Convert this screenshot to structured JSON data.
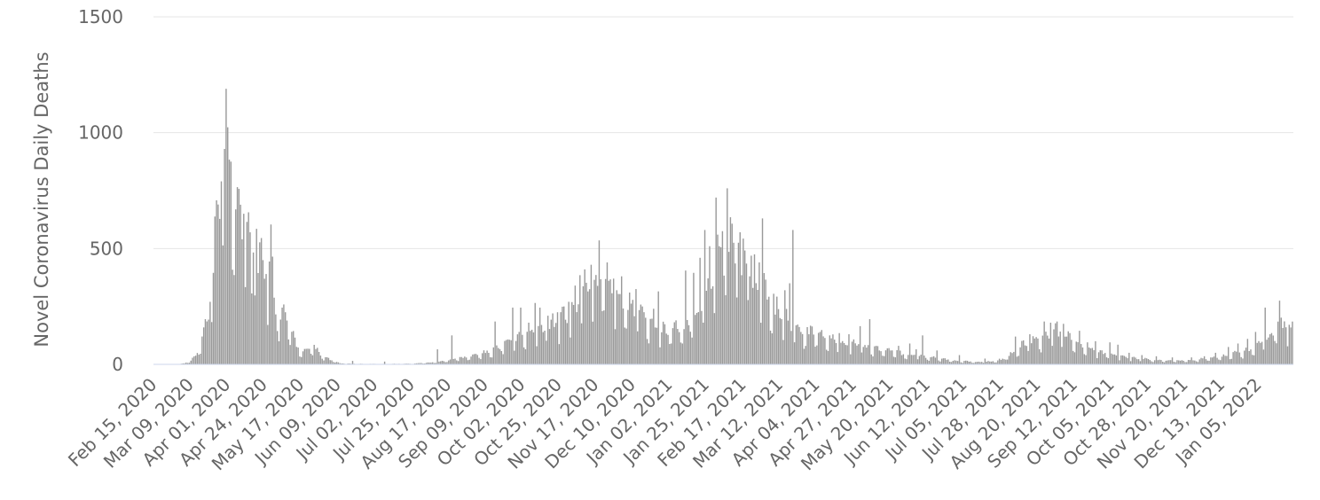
{
  "chart_data": {
    "type": "bar",
    "title": "",
    "ylabel": "Novel Coronavirus Daily Deaths",
    "xlabel": "",
    "ylim": [
      0,
      1500
    ],
    "y_ticks": [
      0,
      500,
      1000,
      1500
    ],
    "grid": true,
    "legend": "none",
    "bar_color": "#999999",
    "x_start": "Feb 15, 2020",
    "x_end": "Jan 26, 2022",
    "x_tick_labels": [
      "Feb 15, 2020",
      "Mar 09, 2020",
      "Apr 01, 2020",
      "Apr 24, 2020",
      "May 17, 2020",
      "Jun 09, 2020",
      "Jul 02, 2020",
      "Jul 25, 2020",
      "Aug 17, 2020",
      "Sep 09, 2020",
      "Oct 02, 2020",
      "Oct 25, 2020",
      "Nov 17, 2020",
      "Dec 10, 2020",
      "Jan 02, 2021",
      "Jan 25, 2021",
      "Feb 17, 2021",
      "Mar 12, 2021",
      "Apr 04, 2021",
      "Apr 27, 2021",
      "May 20, 2021",
      "Jun 12, 2021",
      "Jul 05, 2021",
      "Jul 28, 2021",
      "Aug 20, 2021",
      "Sep 12, 2021",
      "Oct 05, 2021",
      "Oct 28, 2021",
      "Nov 20, 2021",
      "Dec 13, 2021",
      "Jan 05, 2022"
    ],
    "anchors": [
      [
        "Feb 15, 2020",
        0
      ],
      [
        "Mar 01, 2020",
        0
      ],
      [
        "Mar 05, 2020",
        5
      ],
      [
        "Mar 09, 2020",
        15
      ],
      [
        "Mar 13, 2020",
        45
      ],
      [
        "Mar 16, 2020",
        100
      ],
      [
        "Mar 19, 2020",
        190
      ],
      [
        "Mar 22, 2020",
        290
      ],
      [
        "Mar 24, 2020",
        550
      ],
      [
        "Mar 25, 2020",
        700
      ],
      [
        "Mar 27, 2020",
        760
      ],
      [
        "Mar 29, 2020",
        860
      ],
      [
        "Mar 31, 2020",
        950
      ],
      [
        "Apr 01, 2020",
        995
      ],
      [
        "Apr 02, 2020",
        880
      ],
      [
        "Apr 04, 2020",
        770
      ],
      [
        "Apr 06, 2020",
        720
      ],
      [
        "Apr 08, 2020",
        700
      ],
      [
        "Apr 10, 2020",
        640
      ],
      [
        "Apr 12, 2020",
        560
      ],
      [
        "Apr 14, 2020",
        520
      ],
      [
        "Apr 16, 2020",
        350
      ],
      [
        "Apr 18, 2020",
        580
      ],
      [
        "Apr 20, 2020",
        430
      ],
      [
        "Apr 22, 2020",
        460
      ],
      [
        "Apr 24, 2020",
        370
      ],
      [
        "Apr 26, 2020",
        310
      ],
      [
        "Apr 28, 2020",
        460
      ],
      [
        "Apr 30, 2020",
        280
      ],
      [
        "May 03, 2020",
        200
      ],
      [
        "May 06, 2020",
        240
      ],
      [
        "May 09, 2020",
        160
      ],
      [
        "May 12, 2020",
        120
      ],
      [
        "May 15, 2020",
        70
      ],
      [
        "May 18, 2020",
        50
      ],
      [
        "May 21, 2020",
        60
      ],
      [
        "May 25, 2020",
        75
      ],
      [
        "May 29, 2020",
        40
      ],
      [
        "Jun 02, 2020",
        25
      ],
      [
        "Jun 06, 2020",
        15
      ],
      [
        "Jun 10, 2020",
        5
      ],
      [
        "Jun 15, 2020",
        3
      ],
      [
        "Jun 25, 2020",
        2
      ],
      [
        "Jul 10, 2020",
        2
      ],
      [
        "Jul 25, 2020",
        3
      ],
      [
        "Aug 05, 2020",
        8
      ],
      [
        "Aug 15, 2020",
        15
      ],
      [
        "Aug 20, 2020",
        25
      ],
      [
        "Aug 28, 2020",
        30
      ],
      [
        "Sep 05, 2020",
        45
      ],
      [
        "Sep 12, 2020",
        55
      ],
      [
        "Sep 20, 2020",
        90
      ],
      [
        "Sep 28, 2020",
        110
      ],
      [
        "Oct 05, 2020",
        130
      ],
      [
        "Oct 12, 2020",
        150
      ],
      [
        "Oct 20, 2020",
        170
      ],
      [
        "Oct 27, 2020",
        190
      ],
      [
        "Nov 03, 2020",
        230
      ],
      [
        "Nov 08, 2020",
        300
      ],
      [
        "Nov 12, 2020",
        340
      ],
      [
        "Nov 17, 2020",
        330
      ],
      [
        "Nov 22, 2020",
        380
      ],
      [
        "Nov 26, 2020",
        330
      ],
      [
        "Dec 01, 2020",
        280
      ],
      [
        "Dec 05, 2020",
        270
      ],
      [
        "Dec 10, 2020",
        250
      ],
      [
        "Dec 15, 2020",
        220
      ],
      [
        "Dec 20, 2020",
        190
      ],
      [
        "Dec 25, 2020",
        160
      ],
      [
        "Dec 30, 2020",
        140
      ],
      [
        "Jan 02, 2021",
        160
      ],
      [
        "Jan 08, 2021",
        140
      ],
      [
        "Jan 14, 2021",
        160
      ],
      [
        "Jan 20, 2021",
        230
      ],
      [
        "Jan 25, 2021",
        300
      ],
      [
        "Jan 30, 2021",
        390
      ],
      [
        "Feb 03, 2021",
        440
      ],
      [
        "Feb 08, 2021",
        480
      ],
      [
        "Feb 12, 2021",
        520
      ],
      [
        "Feb 17, 2021",
        560
      ],
      [
        "Feb 20, 2021",
        480
      ],
      [
        "Feb 25, 2021",
        360
      ],
      [
        "Mar 02, 2021",
        300
      ],
      [
        "Mar 07, 2021",
        260
      ],
      [
        "Mar 12, 2021",
        230
      ],
      [
        "Mar 17, 2021",
        180
      ],
      [
        "Mar 22, 2021",
        150
      ],
      [
        "Mar 27, 2021",
        130
      ],
      [
        "Apr 01, 2021",
        150
      ],
      [
        "Apr 04, 2021",
        140
      ],
      [
        "Apr 10, 2021",
        110
      ],
      [
        "Apr 16, 2021",
        100
      ],
      [
        "Apr 22, 2021",
        95
      ],
      [
        "Apr 27, 2021",
        90
      ],
      [
        "May 03, 2021",
        80
      ],
      [
        "May 10, 2021",
        70
      ],
      [
        "May 16, 2021",
        60
      ],
      [
        "May 22, 2021",
        55
      ],
      [
        "May 28, 2021",
        45
      ],
      [
        "Jun 03, 2021",
        40
      ],
      [
        "Jun 10, 2021",
        35
      ],
      [
        "Jun 16, 2021",
        30
      ],
      [
        "Jun 22, 2021",
        22
      ],
      [
        "Jun 30, 2021",
        15
      ],
      [
        "Jul 08, 2021",
        12
      ],
      [
        "Jul 15, 2021",
        10
      ],
      [
        "Jul 22, 2021",
        12
      ],
      [
        "Jul 28, 2021",
        20
      ],
      [
        "Aug 03, 2021",
        40
      ],
      [
        "Aug 08, 2021",
        70
      ],
      [
        "Aug 13, 2021",
        90
      ],
      [
        "Aug 18, 2021",
        100
      ],
      [
        "Aug 22, 2021",
        110
      ],
      [
        "Aug 26, 2021",
        130
      ],
      [
        "Aug 30, 2021",
        140
      ],
      [
        "Sep 03, 2021",
        130
      ],
      [
        "Sep 07, 2021",
        120
      ],
      [
        "Sep 12, 2021",
        95
      ],
      [
        "Sep 17, 2021",
        80
      ],
      [
        "Sep 22, 2021",
        65
      ],
      [
        "Sep 27, 2021",
        55
      ],
      [
        "Oct 02, 2021",
        45
      ],
      [
        "Oct 08, 2021",
        40
      ],
      [
        "Oct 14, 2021",
        30
      ],
      [
        "Oct 20, 2021",
        25
      ],
      [
        "Oct 28, 2021",
        20
      ],
      [
        "Nov 05, 2021",
        18
      ],
      [
        "Nov 15, 2021",
        16
      ],
      [
        "Nov 25, 2021",
        18
      ],
      [
        "Dec 05, 2021",
        25
      ],
      [
        "Dec 13, 2021",
        35
      ],
      [
        "Dec 20, 2021",
        45
      ],
      [
        "Dec 27, 2021",
        55
      ],
      [
        "Jan 01, 2022",
        70
      ],
      [
        "Jan 05, 2022",
        90
      ],
      [
        "Jan 10, 2022",
        110
      ],
      [
        "Jan 15, 2022",
        150
      ],
      [
        "Jan 20, 2022",
        180
      ],
      [
        "Jan 26, 2022",
        150
      ]
    ],
    "spikes": [
      [
        "Mar 18, 2020",
        195
      ],
      [
        "Mar 21, 2020",
        270
      ],
      [
        "Mar 23, 2020",
        395
      ],
      [
        "Mar 26, 2020",
        690
      ],
      [
        "Mar 28, 2020",
        790
      ],
      [
        "Mar 30, 2020",
        930
      ],
      [
        "Apr 03, 2020",
        875
      ],
      [
        "Apr 07, 2020",
        765
      ],
      [
        "Apr 11, 2020",
        650
      ],
      [
        "Apr 13, 2020",
        615
      ],
      [
        "Apr 15, 2020",
        570
      ],
      [
        "Apr 19, 2020",
        585
      ],
      [
        "Apr 23, 2020",
        450
      ],
      [
        "Apr 25, 2020",
        390
      ],
      [
        "Apr 29, 2020",
        465
      ],
      [
        "May 05, 2020",
        245
      ],
      [
        "May 07, 2020",
        225
      ],
      [
        "Jun 18, 2020",
        15
      ],
      [
        "Jul 08, 2020",
        12
      ],
      [
        "Aug 10, 2020",
        65
      ],
      [
        "Aug 19, 2020",
        125
      ],
      [
        "Sep 15, 2020",
        185
      ],
      [
        "Sep 26, 2020",
        245
      ],
      [
        "Oct 01, 2020",
        245
      ],
      [
        "Oct 06, 2020",
        180
      ],
      [
        "Oct 10, 2020",
        265
      ],
      [
        "Oct 13, 2020",
        245
      ],
      [
        "Oct 18, 2020",
        210
      ],
      [
        "Oct 21, 2020",
        220
      ],
      [
        "Oct 24, 2020",
        225
      ],
      [
        "Oct 28, 2020",
        250
      ],
      [
        "Oct 31, 2020",
        270
      ],
      [
        "Nov 04, 2020",
        340
      ],
      [
        "Nov 07, 2020",
        385
      ],
      [
        "Nov 10, 2020",
        410
      ],
      [
        "Nov 14, 2020",
        430
      ],
      [
        "Nov 16, 2020",
        365
      ],
      [
        "Nov 19, 2020",
        535
      ],
      [
        "Nov 24, 2020",
        440
      ],
      [
        "Nov 28, 2020",
        370
      ],
      [
        "Nov 30, 2020",
        320
      ],
      [
        "Dec 03, 2020",
        380
      ],
      [
        "Dec 08, 2020",
        310
      ],
      [
        "Dec 12, 2020",
        325
      ],
      [
        "Dec 16, 2020",
        250
      ],
      [
        "Dec 23, 2020",
        240
      ],
      [
        "Dec 26, 2020",
        315
      ],
      [
        "Jan 06, 2021",
        190
      ],
      [
        "Jan 12, 2021",
        405
      ],
      [
        "Jan 17, 2021",
        395
      ],
      [
        "Jan 21, 2021",
        460
      ],
      [
        "Jan 24, 2021",
        580
      ],
      [
        "Jan 27, 2021",
        510
      ],
      [
        "Jan 31, 2021",
        720
      ],
      [
        "Feb 01, 2021",
        560
      ],
      [
        "Feb 04, 2021",
        575
      ],
      [
        "Feb 07, 2021",
        760
      ],
      [
        "Feb 09, 2021",
        635
      ],
      [
        "Feb 11, 2021",
        525
      ],
      [
        "Feb 14, 2021",
        525
      ],
      [
        "Feb 16, 2021",
        385
      ],
      [
        "Feb 19, 2021",
        435
      ],
      [
        "Feb 21, 2021",
        380
      ],
      [
        "Feb 23, 2021",
        330
      ],
      [
        "Feb 27, 2021",
        440
      ],
      [
        "Mar 01, 2021",
        630
      ],
      [
        "Mar 04, 2021",
        280
      ],
      [
        "Mar 09, 2021",
        215
      ],
      [
        "Mar 13, 2021",
        195
      ],
      [
        "Mar 15, 2021",
        320
      ],
      [
        "Mar 18, 2021",
        350
      ],
      [
        "Mar 20, 2021",
        580
      ],
      [
        "Mar 25, 2021",
        140
      ],
      [
        "Mar 30, 2021",
        130
      ],
      [
        "Apr 06, 2021",
        140
      ],
      [
        "Apr 12, 2021",
        125
      ],
      [
        "Apr 18, 2021",
        135
      ],
      [
        "Apr 24, 2021",
        130
      ],
      [
        "May 01, 2021",
        165
      ],
      [
        "May 07, 2021",
        195
      ],
      [
        "May 13, 2021",
        60
      ],
      [
        "May 25, 2021",
        80
      ],
      [
        "Jun 01, 2021",
        90
      ],
      [
        "Jun 05, 2021",
        65
      ],
      [
        "Jun 09, 2021",
        125
      ],
      [
        "Jun 18, 2021",
        60
      ],
      [
        "Jul 02, 2021",
        40
      ],
      [
        "Jul 18, 2021",
        25
      ],
      [
        "Aug 06, 2021",
        120
      ],
      [
        "Aug 15, 2021",
        130
      ],
      [
        "Aug 24, 2021",
        185
      ],
      [
        "Aug 28, 2021",
        180
      ],
      [
        "Sep 01, 2021",
        185
      ],
      [
        "Sep 05, 2021",
        175
      ],
      [
        "Sep 09, 2021",
        135
      ],
      [
        "Sep 15, 2021",
        145
      ],
      [
        "Sep 20, 2021",
        95
      ],
      [
        "Sep 25, 2021",
        100
      ],
      [
        "Oct 04, 2021",
        95
      ],
      [
        "Oct 09, 2021",
        85
      ],
      [
        "Oct 16, 2021",
        50
      ],
      [
        "Oct 24, 2021",
        40
      ],
      [
        "Nov 02, 2021",
        35
      ],
      [
        "Nov 12, 2021",
        30
      ],
      [
        "Nov 24, 2021",
        30
      ],
      [
        "Dec 02, 2021",
        35
      ],
      [
        "Dec 09, 2021",
        50
      ],
      [
        "Dec 17, 2021",
        75
      ],
      [
        "Dec 23, 2021",
        90
      ],
      [
        "Dec 29, 2021",
        110
      ],
      [
        "Jan 03, 2022",
        140
      ],
      [
        "Jan 09, 2022",
        245
      ],
      [
        "Jan 12, 2022",
        130
      ],
      [
        "Jan 18, 2022",
        275
      ],
      [
        "Jan 22, 2022",
        160
      ]
    ]
  }
}
